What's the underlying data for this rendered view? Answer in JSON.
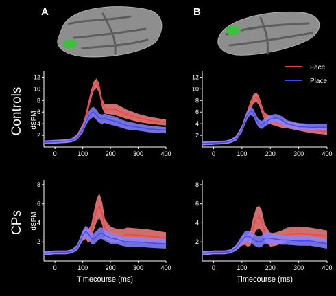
{
  "figure": {
    "panel_labels": [
      "A",
      "B"
    ],
    "row_labels": [
      "Controls",
      "CPs"
    ],
    "legend": [
      {
        "name": "Face",
        "color": "#ff3b3b"
      },
      {
        "name": "Place",
        "color": "#3b4bff"
      }
    ],
    "xlabel": "Timecourse (ms)",
    "ylabel": "dSPM"
  },
  "colors": {
    "background": "#000000",
    "face_line": "#ff3b3b",
    "face_band": "#f48080",
    "place_line": "#3b4bff",
    "place_band": "#8a84ff",
    "brain_gray": "#8e8e8e",
    "roi_green": "#3fbf3f"
  },
  "chart_data": [
    {
      "type": "line",
      "panel": "A",
      "row": "Controls",
      "xlim": [
        -40,
        400
      ],
      "ylim": [
        0,
        13
      ],
      "xticks": [
        0,
        100,
        200,
        300,
        400
      ],
      "yticks": [
        2,
        4,
        6,
        8,
        10,
        12
      ],
      "xlabel": "",
      "ylabel": "dSPM",
      "x": [
        -40,
        0,
        40,
        60,
        80,
        100,
        110,
        120,
        130,
        140,
        150,
        160,
        170,
        180,
        200,
        220,
        240,
        260,
        300,
        340,
        400
      ],
      "series": [
        {
          "name": "Face",
          "values": [
            0.8,
            0.9,
            1.0,
            1.2,
            1.8,
            3.5,
            5.0,
            7.0,
            9.0,
            10.5,
            11.0,
            10.0,
            7.5,
            6.5,
            6.5,
            6.4,
            6.0,
            5.6,
            5.0,
            4.6,
            4.2
          ],
          "err": [
            0.3,
            0.3,
            0.3,
            0.3,
            0.4,
            0.5,
            0.6,
            0.7,
            0.8,
            0.8,
            0.8,
            0.8,
            0.8,
            0.8,
            0.9,
            1.0,
            0.9,
            0.8,
            0.7,
            0.6,
            0.5
          ]
        },
        {
          "name": "Place",
          "values": [
            0.8,
            0.9,
            1.0,
            1.1,
            1.6,
            3.0,
            4.2,
            5.2,
            5.8,
            6.0,
            5.5,
            4.9,
            4.8,
            4.9,
            4.6,
            4.4,
            4.0,
            3.7,
            3.4,
            3.1,
            2.9
          ],
          "err": [
            0.3,
            0.3,
            0.3,
            0.3,
            0.4,
            0.6,
            0.7,
            0.8,
            0.9,
            0.9,
            0.9,
            0.8,
            0.8,
            0.8,
            0.8,
            0.8,
            0.7,
            0.7,
            0.6,
            0.6,
            0.5
          ]
        }
      ]
    },
    {
      "type": "line",
      "panel": "B",
      "row": "Controls",
      "xlim": [
        -40,
        400
      ],
      "ylim": [
        0,
        13
      ],
      "xticks": [
        0,
        100,
        200,
        300,
        400
      ],
      "yticks": [
        2,
        4,
        6,
        8,
        10,
        12
      ],
      "xlabel": "",
      "ylabel": "dSPM",
      "x": [
        -40,
        0,
        40,
        60,
        80,
        100,
        110,
        120,
        130,
        140,
        150,
        160,
        170,
        180,
        200,
        220,
        240,
        260,
        300,
        340,
        400
      ],
      "series": [
        {
          "name": "Face",
          "values": [
            0.6,
            0.7,
            0.8,
            1.0,
            1.6,
            3.2,
            4.6,
            5.8,
            7.2,
            8.2,
            8.6,
            8.0,
            6.5,
            5.2,
            4.6,
            4.3,
            4.0,
            3.8,
            3.4,
            3.0,
            2.6
          ],
          "err": [
            0.3,
            0.3,
            0.3,
            0.3,
            0.4,
            0.5,
            0.6,
            0.7,
            0.7,
            0.8,
            0.8,
            0.8,
            0.7,
            0.7,
            0.7,
            0.7,
            0.7,
            0.6,
            0.6,
            0.6,
            0.5
          ]
        },
        {
          "name": "Place",
          "values": [
            0.6,
            0.7,
            0.8,
            1.0,
            1.5,
            3.0,
            4.4,
            5.6,
            6.2,
            5.9,
            4.8,
            4.0,
            3.8,
            4.2,
            4.8,
            5.0,
            4.6,
            4.0,
            3.5,
            3.4,
            3.4
          ],
          "err": [
            0.3,
            0.3,
            0.3,
            0.3,
            0.4,
            0.5,
            0.6,
            0.7,
            0.7,
            0.7,
            0.7,
            0.7,
            0.7,
            0.7,
            0.7,
            0.7,
            0.7,
            0.6,
            0.6,
            0.6,
            0.6
          ]
        }
      ]
    },
    {
      "type": "line",
      "panel": "A",
      "row": "CPs",
      "xlim": [
        -40,
        400
      ],
      "ylim": [
        0,
        8.5
      ],
      "xticks": [
        0,
        100,
        200,
        300,
        400
      ],
      "yticks": [
        2,
        4,
        6,
        8
      ],
      "xlabel": "Timecourse (ms)",
      "ylabel": "dSPM",
      "x": [
        -40,
        0,
        40,
        60,
        80,
        100,
        110,
        120,
        130,
        140,
        150,
        160,
        170,
        180,
        200,
        220,
        240,
        260,
        300,
        340,
        400
      ],
      "series": [
        {
          "name": "Face",
          "values": [
            0.8,
            0.9,
            0.9,
            1.0,
            1.4,
            2.6,
            2.9,
            2.6,
            3.0,
            4.2,
            5.3,
            5.8,
            5.0,
            3.4,
            2.8,
            2.7,
            2.6,
            2.8,
            2.7,
            2.6,
            2.4
          ],
          "err": [
            0.2,
            0.2,
            0.2,
            0.2,
            0.3,
            0.5,
            0.6,
            0.7,
            0.8,
            1.0,
            1.2,
            1.3,
            1.2,
            1.0,
            0.8,
            0.7,
            0.7,
            0.7,
            0.7,
            0.7,
            0.6
          ]
        },
        {
          "name": "Place",
          "values": [
            0.8,
            0.9,
            0.9,
            1.0,
            1.4,
            2.7,
            3.1,
            2.9,
            2.4,
            2.3,
            2.6,
            2.9,
            2.9,
            2.7,
            2.4,
            2.3,
            2.1,
            2.0,
            2.0,
            1.9,
            1.8
          ],
          "err": [
            0.2,
            0.2,
            0.2,
            0.2,
            0.3,
            0.5,
            0.6,
            0.6,
            0.6,
            0.6,
            0.6,
            0.6,
            0.6,
            0.6,
            0.6,
            0.5,
            0.5,
            0.5,
            0.5,
            0.5,
            0.5
          ]
        }
      ]
    },
    {
      "type": "line",
      "panel": "B",
      "row": "CPs",
      "xlim": [
        -40,
        400
      ],
      "ylim": [
        0,
        8.5
      ],
      "xticks": [
        0,
        100,
        200,
        300,
        400
      ],
      "yticks": [
        2,
        4,
        6,
        8
      ],
      "xlabel": "Timecourse (ms)",
      "ylabel": "",
      "x": [
        -40,
        0,
        40,
        60,
        80,
        100,
        110,
        120,
        130,
        140,
        150,
        160,
        170,
        180,
        200,
        220,
        240,
        260,
        300,
        340,
        400
      ],
      "series": [
        {
          "name": "Face",
          "values": [
            0.8,
            0.9,
            0.9,
            1.0,
            1.4,
            2.0,
            2.2,
            2.1,
            2.4,
            3.6,
            4.4,
            4.6,
            4.2,
            3.0,
            2.2,
            2.3,
            2.5,
            2.8,
            2.9,
            2.8,
            2.6
          ],
          "err": [
            0.2,
            0.2,
            0.2,
            0.2,
            0.3,
            0.4,
            0.5,
            0.6,
            0.8,
            1.0,
            1.2,
            1.2,
            1.1,
            0.9,
            0.7,
            0.7,
            0.7,
            0.7,
            0.7,
            0.7,
            0.6
          ]
        },
        {
          "name": "Place",
          "values": [
            0.8,
            0.9,
            0.9,
            1.0,
            1.4,
            2.2,
            2.5,
            2.6,
            2.5,
            2.3,
            2.1,
            2.0,
            2.1,
            2.4,
            2.4,
            2.3,
            2.2,
            2.2,
            2.1,
            2.1,
            1.8
          ],
          "err": [
            0.2,
            0.2,
            0.2,
            0.2,
            0.3,
            0.5,
            0.6,
            0.6,
            0.6,
            0.6,
            0.6,
            0.6,
            0.6,
            0.6,
            0.6,
            0.5,
            0.5,
            0.5,
            0.5,
            0.5,
            0.5
          ]
        }
      ]
    }
  ]
}
